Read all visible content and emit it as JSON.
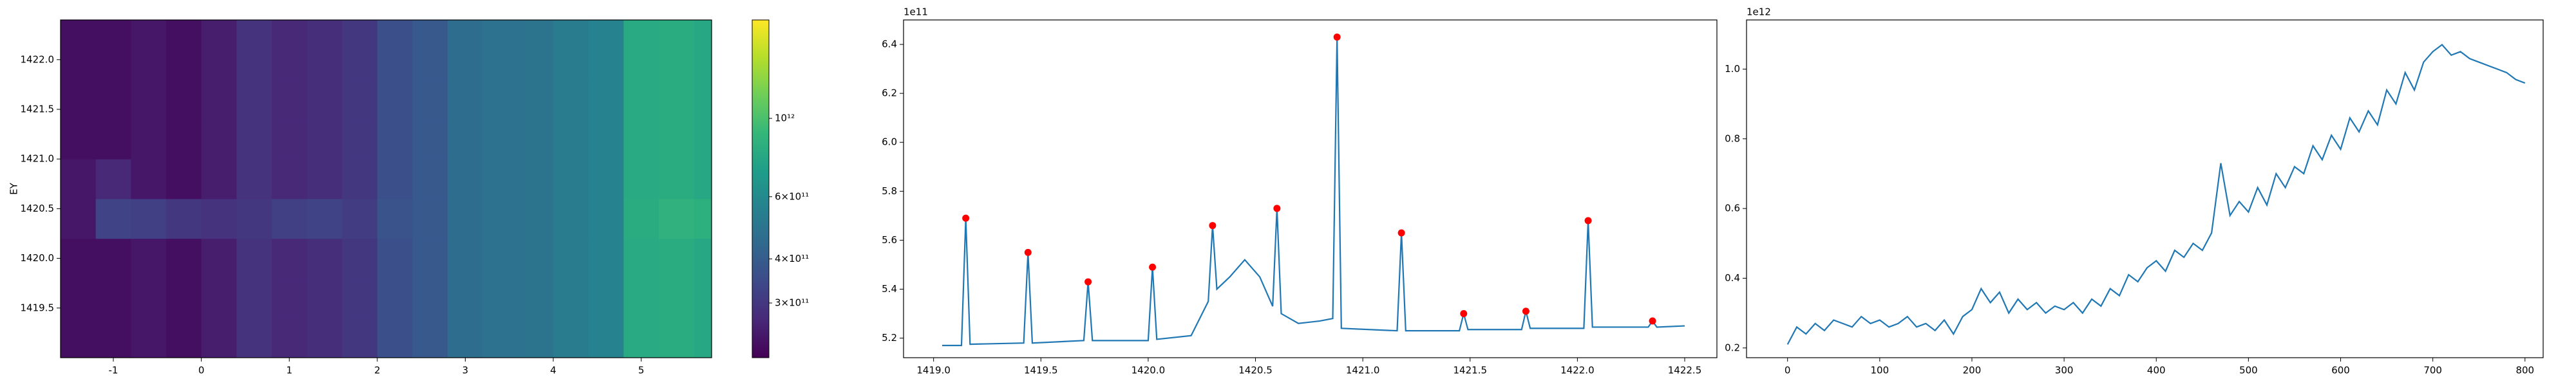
{
  "chart_data": [
    {
      "type": "heatmap",
      "y_label": "EY",
      "xlim": [
        -1.6,
        5.8
      ],
      "ylim": [
        1419.0,
        1422.4
      ],
      "xticks": [
        -1,
        0,
        1,
        2,
        3,
        4,
        5
      ],
      "yticks": [
        1419.5,
        {
          "value": 1420,
          "label": "1420.0"
        },
        1420.5,
        {
          "value": 1421,
          "label": "1421.0"
        },
        1421.5,
        {
          "value": 1422,
          "label": "1422.0"
        }
      ],
      "x_edges": [
        -1.6,
        -1.2,
        -0.8,
        -0.4,
        0,
        0.4,
        0.8,
        1.2,
        1.6,
        2.0,
        2.4,
        2.8,
        3.2,
        3.6,
        4.0,
        4.4,
        4.8,
        5.2,
        5.6,
        5.8
      ],
      "y_edges": [
        1419.0,
        1419.4,
        1419.8,
        1420.2,
        1420.6,
        1421.0,
        1421.4,
        1421.8,
        1422.4
      ],
      "z": [
        [
          230000000000.0,
          230000000000.0,
          240000000000.0,
          230000000000.0,
          250000000000.0,
          290000000000.0,
          270000000000.0,
          280000000000.0,
          300000000000.0,
          360000000000.0,
          390000000000.0,
          460000000000.0,
          480000000000.0,
          490000000000.0,
          530000000000.0,
          560000000000.0,
          800000000000.0,
          820000000000.0,
          780000000000.0
        ],
        [
          230000000000.0,
          230000000000.0,
          240000000000.0,
          230000000000.0,
          250000000000.0,
          290000000000.0,
          270000000000.0,
          280000000000.0,
          300000000000.0,
          360000000000.0,
          390000000000.0,
          460000000000.0,
          480000000000.0,
          490000000000.0,
          530000000000.0,
          560000000000.0,
          800000000000.0,
          820000000000.0,
          780000000000.0
        ],
        [
          230000000000.0,
          230000000000.0,
          240000000000.0,
          230000000000.0,
          250000000000.0,
          290000000000.0,
          270000000000.0,
          280000000000.0,
          300000000000.0,
          360000000000.0,
          390000000000.0,
          460000000000.0,
          480000000000.0,
          490000000000.0,
          530000000000.0,
          560000000000.0,
          800000000000.0,
          820000000000.0,
          780000000000.0
        ],
        [
          240000000000.0,
          330000000000.0,
          320000000000.0,
          300000000000.0,
          290000000000.0,
          300000000000.0,
          320000000000.0,
          330000000000.0,
          310000000000.0,
          370000000000.0,
          390000000000.0,
          460000000000.0,
          480000000000.0,
          490000000000.0,
          530000000000.0,
          560000000000.0,
          820000000000.0,
          860000000000.0,
          840000000000.0
        ],
        [
          240000000000.0,
          270000000000.0,
          240000000000.0,
          230000000000.0,
          250000000000.0,
          290000000000.0,
          270000000000.0,
          280000000000.0,
          300000000000.0,
          360000000000.0,
          390000000000.0,
          460000000000.0,
          480000000000.0,
          490000000000.0,
          530000000000.0,
          560000000000.0,
          800000000000.0,
          820000000000.0,
          780000000000.0
        ],
        [
          230000000000.0,
          230000000000.0,
          240000000000.0,
          230000000000.0,
          250000000000.0,
          290000000000.0,
          270000000000.0,
          280000000000.0,
          300000000000.0,
          360000000000.0,
          390000000000.0,
          460000000000.0,
          480000000000.0,
          490000000000.0,
          530000000000.0,
          560000000000.0,
          800000000000.0,
          820000000000.0,
          780000000000.0
        ],
        [
          230000000000.0,
          230000000000.0,
          240000000000.0,
          230000000000.0,
          250000000000.0,
          290000000000.0,
          270000000000.0,
          280000000000.0,
          300000000000.0,
          360000000000.0,
          390000000000.0,
          460000000000.0,
          480000000000.0,
          490000000000.0,
          530000000000.0,
          560000000000.0,
          800000000000.0,
          820000000000.0,
          780000000000.0
        ],
        [
          230000000000.0,
          230000000000.0,
          240000000000.0,
          230000000000.0,
          250000000000.0,
          290000000000.0,
          270000000000.0,
          280000000000.0,
          300000000000.0,
          360000000000.0,
          390000000000.0,
          460000000000.0,
          480000000000.0,
          490000000000.0,
          530000000000.0,
          560000000000.0,
          800000000000.0,
          820000000000.0,
          780000000000.0
        ]
      ],
      "colorbar": {
        "colormap": "viridis",
        "log": true,
        "clim": [
          210000000000.0,
          1900000000000.0
        ],
        "ticks": [
          {
            "value": 300000000000.0,
            "label": "3×10¹¹"
          },
          {
            "value": 400000000000.0,
            "label": "4×10¹¹"
          },
          {
            "value": 600000000000.0,
            "label": "6×10¹¹"
          },
          {
            "value": 1000000000000.0,
            "label": "10¹²"
          }
        ]
      }
    },
    {
      "type": "line",
      "y_offset_label": "1e11",
      "xlim": [
        1418.86,
        1422.65
      ],
      "ylim": [
        5.12,
        6.5
      ],
      "xticks": [
        {
          "value": 1419,
          "label": "1419.0"
        },
        1419.5,
        {
          "value": 1420,
          "label": "1420.0"
        },
        1420.5,
        {
          "value": 1421,
          "label": "1421.0"
        },
        1421.5,
        {
          "value": 1422,
          "label": "1422.0"
        },
        1422.5
      ],
      "yticks": [
        5.2,
        5.4,
        5.6,
        5.8,
        {
          "value": 6,
          "label": "6.0"
        },
        6.2,
        6.4
      ],
      "series": [
        {
          "style": "line",
          "color": "#1f77b4",
          "x": [
            1419.04,
            1419.13,
            1419.15,
            1419.17,
            1419.42,
            1419.44,
            1419.46,
            1419.7,
            1419.72,
            1419.74,
            1420.0,
            1420.02,
            1420.04,
            1420.2,
            1420.28,
            1420.3,
            1420.32,
            1420.38,
            1420.45,
            1420.52,
            1420.58,
            1420.6,
            1420.62,
            1420.7,
            1420.8,
            1420.86,
            1420.88,
            1420.9,
            1421.16,
            1421.18,
            1421.2,
            1421.45,
            1421.47,
            1421.49,
            1421.74,
            1421.76,
            1421.78,
            1422.03,
            1422.05,
            1422.07,
            1422.33,
            1422.35,
            1422.37,
            1422.5
          ],
          "values": [
            5.17,
            5.17,
            5.69,
            5.175,
            5.18,
            5.55,
            5.18,
            5.19,
            5.43,
            5.19,
            5.19,
            5.49,
            5.195,
            5.21,
            5.35,
            5.66,
            5.4,
            5.45,
            5.52,
            5.45,
            5.33,
            5.73,
            5.3,
            5.26,
            5.27,
            5.28,
            6.43,
            5.24,
            5.23,
            5.63,
            5.23,
            5.23,
            5.3,
            5.235,
            5.235,
            5.31,
            5.24,
            5.24,
            5.68,
            5.245,
            5.245,
            5.27,
            5.245,
            5.25
          ]
        },
        {
          "style": "markers",
          "color": "#ff0000",
          "x": [
            1419.15,
            1419.44,
            1419.72,
            1420.02,
            1420.3,
            1420.6,
            1420.88,
            1421.18,
            1421.47,
            1421.76,
            1422.05,
            1422.35
          ],
          "values": [
            5.69,
            5.55,
            5.43,
            5.49,
            5.66,
            5.73,
            6.43,
            5.63,
            5.3,
            5.31,
            5.68,
            5.27
          ]
        }
      ]
    },
    {
      "type": "line",
      "y_offset_label": "1e12",
      "xlim": [
        -44.5,
        819.7
      ],
      "ylim": [
        0.172,
        1.141
      ],
      "xticks": [
        0,
        100,
        200,
        300,
        400,
        500,
        600,
        700,
        800
      ],
      "yticks": [
        0.2,
        0.4,
        0.6,
        0.8,
        {
          "value": 1,
          "label": "1.0"
        }
      ],
      "series": [
        {
          "style": "line",
          "color": "#1f77b4",
          "x": [
            0,
            10,
            20,
            30,
            40,
            50,
            60,
            70,
            80,
            90,
            100,
            110,
            120,
            130,
            140,
            150,
            160,
            170,
            180,
            190,
            200,
            210,
            220,
            230,
            240,
            250,
            260,
            270,
            280,
            290,
            300,
            310,
            320,
            330,
            340,
            350,
            360,
            370,
            380,
            390,
            400,
            410,
            420,
            430,
            440,
            450,
            460,
            470,
            480,
            490,
            500,
            510,
            520,
            530,
            540,
            550,
            560,
            570,
            580,
            590,
            600,
            610,
            620,
            630,
            640,
            650,
            660,
            670,
            680,
            690,
            700,
            710,
            720,
            730,
            740,
            750,
            760,
            770,
            780,
            790,
            800
          ],
          "values": [
            0.21,
            0.26,
            0.24,
            0.27,
            0.25,
            0.28,
            0.27,
            0.26,
            0.29,
            0.27,
            0.28,
            0.26,
            0.27,
            0.29,
            0.26,
            0.27,
            0.25,
            0.28,
            0.24,
            0.29,
            0.31,
            0.37,
            0.33,
            0.36,
            0.3,
            0.34,
            0.31,
            0.33,
            0.3,
            0.32,
            0.31,
            0.33,
            0.3,
            0.34,
            0.32,
            0.37,
            0.35,
            0.41,
            0.39,
            0.43,
            0.45,
            0.42,
            0.48,
            0.46,
            0.5,
            0.48,
            0.53,
            0.73,
            0.58,
            0.62,
            0.59,
            0.66,
            0.61,
            0.7,
            0.66,
            0.72,
            0.7,
            0.78,
            0.74,
            0.81,
            0.77,
            0.86,
            0.82,
            0.88,
            0.84,
            0.94,
            0.9,
            0.99,
            0.94,
            1.02,
            1.05,
            1.07,
            1.04,
            1.05,
            1.03,
            1.02,
            1.01,
            1.0,
            0.99,
            0.97,
            0.96
          ]
        }
      ]
    }
  ]
}
